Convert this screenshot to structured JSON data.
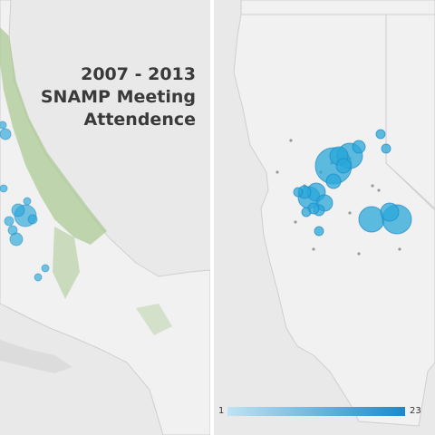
{
  "title": {
    "line1": "2007 - 2013",
    "line2": "SNAMP Meeting",
    "line3": "Attendence"
  },
  "legend": {
    "min": "1",
    "max": "23",
    "color_min": "#bfe3f3",
    "color_max": "#1e88c7"
  },
  "colors": {
    "land": "#f1f1f1",
    "background": "#e9e9e9",
    "state_line": "#cfcfcf",
    "forest": "#a8c890",
    "marker": "#2aa7d8",
    "marker_stroke": "#1e88c7"
  },
  "map_left": {
    "style": "terrain"
  },
  "map_right": {
    "style": "plain"
  }
}
